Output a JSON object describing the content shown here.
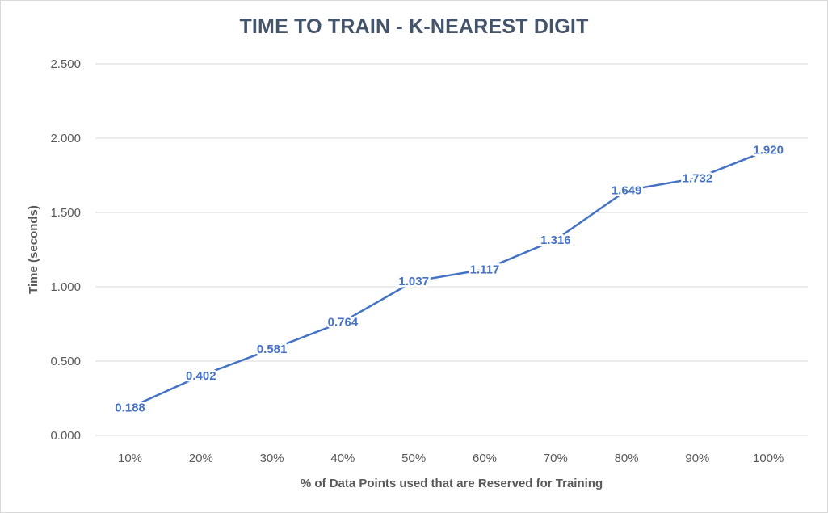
{
  "chart_data": {
    "type": "line",
    "title": "TIME TO TRAIN - K-NEAREST DIGIT",
    "xlabel": "% of Data Points used that are Reserved for Training",
    "ylabel": "Time (seconds)",
    "categories": [
      "10%",
      "20%",
      "30%",
      "40%",
      "50%",
      "60%",
      "70%",
      "80%",
      "90%",
      "100%"
    ],
    "series": [
      {
        "values": [
          0.188,
          0.402,
          0.581,
          0.764,
          1.037,
          1.117,
          1.316,
          1.649,
          1.732,
          1.92
        ],
        "labels": [
          "0.188",
          "0.402",
          "0.581",
          "0.764",
          "1.037",
          "1.117",
          "1.316",
          "1.649",
          "1.732",
          "1.920"
        ],
        "color": "#4472c4"
      }
    ],
    "ylim": [
      0,
      2.5
    ],
    "yticks": [
      0,
      0.5,
      1.0,
      1.5,
      2.0,
      2.5
    ],
    "ytick_labels": [
      "0.000",
      "0.500",
      "1.000",
      "1.500",
      "2.000",
      "2.500"
    ],
    "grid": true,
    "legend": "none",
    "colors": {
      "title": "#44546a",
      "axis_text": "#595959",
      "gridline": "#d9d9d9",
      "line": "#4472c4"
    }
  }
}
